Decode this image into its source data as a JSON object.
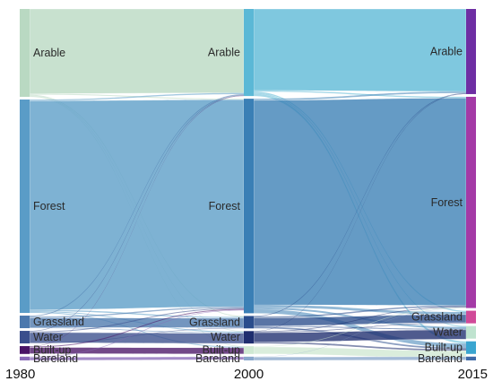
{
  "chart_data": {
    "type": "sankey",
    "stages": [
      "1980",
      "2000",
      "2015"
    ],
    "categories": [
      "Arable",
      "Forest",
      "Grassland",
      "Water",
      "Built-up",
      "Bareland"
    ],
    "nodes": {
      "1980": [
        {
          "id": "Arable",
          "label": "Arable",
          "value": 28,
          "color": "#b9d9c2"
        },
        {
          "id": "Forest",
          "label": "Forest",
          "value": 68,
          "color": "#5a9cc7"
        },
        {
          "id": "Grassland",
          "label": "Grassland",
          "value": 4,
          "color": "#4b78ad"
        },
        {
          "id": "Water",
          "label": "Water",
          "value": 4,
          "color": "#3a4e8c"
        },
        {
          "id": "Built-up",
          "label": "Built-up",
          "value": 2.5,
          "color": "#4a1466"
        },
        {
          "id": "Bareland",
          "label": "Bareland",
          "value": 1.2,
          "color": "#8a6ab8"
        }
      ],
      "2000": [
        {
          "id": "Arable",
          "label": "Arable",
          "value": 28,
          "color": "#5bb8d6"
        },
        {
          "id": "Forest",
          "label": "Forest",
          "value": 69,
          "color": "#3a7fb5"
        },
        {
          "id": "Grassland",
          "label": "Grassland",
          "value": 4,
          "color": "#2a4d8c"
        },
        {
          "id": "Water",
          "label": "Water",
          "value": 4,
          "color": "#1e2d6e"
        },
        {
          "id": "Built-up",
          "label": "Built-up",
          "value": 2.5,
          "color": "#cfe8d2"
        },
        {
          "id": "Bareland",
          "label": "Bareland",
          "value": 1.2,
          "color": "#8aa8cc"
        }
      ],
      "2015": [
        {
          "id": "Arable",
          "label": "Arable",
          "value": 27,
          "color": "#6e2ea3"
        },
        {
          "id": "Forest",
          "label": "Forest",
          "value": 67,
          "color": "#a43aa6"
        },
        {
          "id": "Grassland",
          "label": "Grassland",
          "value": 4,
          "color": "#d04a98"
        },
        {
          "id": "Water",
          "label": "Water",
          "value": 4,
          "color": "#bfe3cf"
        },
        {
          "id": "Built-up",
          "label": "Built-up",
          "value": 4,
          "color": "#3aa5d0"
        },
        {
          "id": "Bareland",
          "label": "Bareland",
          "value": 1.2,
          "color": "#3f6aa8"
        }
      ]
    },
    "links": [
      {
        "stage": 0,
        "source": "Arable",
        "target": "Arable",
        "value": 27
      },
      {
        "stage": 0,
        "source": "Arable",
        "target": "Forest",
        "value": 0.3
      },
      {
        "stage": 0,
        "source": "Arable",
        "target": "Grassland",
        "value": 0.3
      },
      {
        "stage": 0,
        "source": "Arable",
        "target": "Water",
        "value": 0.2
      },
      {
        "stage": 0,
        "source": "Arable",
        "target": "Built-up",
        "value": 0.2
      },
      {
        "stage": 0,
        "source": "Forest",
        "target": "Arable",
        "value": 0.4
      },
      {
        "stage": 0,
        "source": "Forest",
        "target": "Forest",
        "value": 66.6
      },
      {
        "stage": 0,
        "source": "Forest",
        "target": "Grassland",
        "value": 0.4
      },
      {
        "stage": 0,
        "source": "Forest",
        "target": "Water",
        "value": 0.3
      },
      {
        "stage": 0,
        "source": "Forest",
        "target": "Built-up",
        "value": 0.3
      },
      {
        "stage": 0,
        "source": "Grassland",
        "target": "Arable",
        "value": 0.3
      },
      {
        "stage": 0,
        "source": "Grassland",
        "target": "Forest",
        "value": 0.4
      },
      {
        "stage": 0,
        "source": "Grassland",
        "target": "Grassland",
        "value": 3.1
      },
      {
        "stage": 0,
        "source": "Grassland",
        "target": "Water",
        "value": 0.2
      },
      {
        "stage": 0,
        "source": "Water",
        "target": "Arable",
        "value": 0.2
      },
      {
        "stage": 0,
        "source": "Water",
        "target": "Forest",
        "value": 0.3
      },
      {
        "stage": 0,
        "source": "Water",
        "target": "Water",
        "value": 3.3
      },
      {
        "stage": 0,
        "source": "Water",
        "target": "Grassland",
        "value": 0.2
      },
      {
        "stage": 0,
        "source": "Built-up",
        "target": "Arable",
        "value": 0.1
      },
      {
        "stage": 0,
        "source": "Built-up",
        "target": "Forest",
        "value": 0.3
      },
      {
        "stage": 0,
        "source": "Built-up",
        "target": "Built-up",
        "value": 2.0
      },
      {
        "stage": 0,
        "source": "Bareland",
        "target": "Forest",
        "value": 0.2
      },
      {
        "stage": 0,
        "source": "Bareland",
        "target": "Bareland",
        "value": 1.0
      },
      {
        "stage": 1,
        "source": "Arable",
        "target": "Arable",
        "value": 26.2
      },
      {
        "stage": 1,
        "source": "Arable",
        "target": "Forest",
        "value": 0.4
      },
      {
        "stage": 1,
        "source": "Arable",
        "target": "Grassland",
        "value": 0.4
      },
      {
        "stage": 1,
        "source": "Arable",
        "target": "Water",
        "value": 0.3
      },
      {
        "stage": 1,
        "source": "Arable",
        "target": "Built-up",
        "value": 0.7
      },
      {
        "stage": 1,
        "source": "Forest",
        "target": "Arable",
        "value": 0.5
      },
      {
        "stage": 1,
        "source": "Forest",
        "target": "Forest",
        "value": 65.8
      },
      {
        "stage": 1,
        "source": "Forest",
        "target": "Grassland",
        "value": 0.8
      },
      {
        "stage": 1,
        "source": "Forest",
        "target": "Water",
        "value": 0.6
      },
      {
        "stage": 1,
        "source": "Forest",
        "target": "Built-up",
        "value": 1.3
      },
      {
        "stage": 1,
        "source": "Grassland",
        "target": "Arable",
        "value": 0.2
      },
      {
        "stage": 1,
        "source": "Grassland",
        "target": "Forest",
        "value": 0.4
      },
      {
        "stage": 1,
        "source": "Grassland",
        "target": "Grassland",
        "value": 2.6
      },
      {
        "stage": 1,
        "source": "Grassland",
        "target": "Water",
        "value": 0.3
      },
      {
        "stage": 1,
        "source": "Grassland",
        "target": "Built-up",
        "value": 0.5
      },
      {
        "stage": 1,
        "source": "Water",
        "target": "Arable",
        "value": 0.1
      },
      {
        "stage": 1,
        "source": "Water",
        "target": "Forest",
        "value": 0.2
      },
      {
        "stage": 1,
        "source": "Water",
        "target": "Grassland",
        "value": 0.2
      },
      {
        "stage": 1,
        "source": "Water",
        "target": "Water",
        "value": 3.0
      },
      {
        "stage": 1,
        "source": "Water",
        "target": "Built-up",
        "value": 0.5
      },
      {
        "stage": 1,
        "source": "Built-up",
        "target": "Forest",
        "value": 0.2
      },
      {
        "stage": 1,
        "source": "Built-up",
        "target": "Built-up",
        "value": 2.3
      },
      {
        "stage": 1,
        "source": "Bareland",
        "target": "Forest",
        "value": 0.1
      },
      {
        "stage": 1,
        "source": "Bareland",
        "target": "Bareland",
        "value": 1.1
      }
    ]
  }
}
